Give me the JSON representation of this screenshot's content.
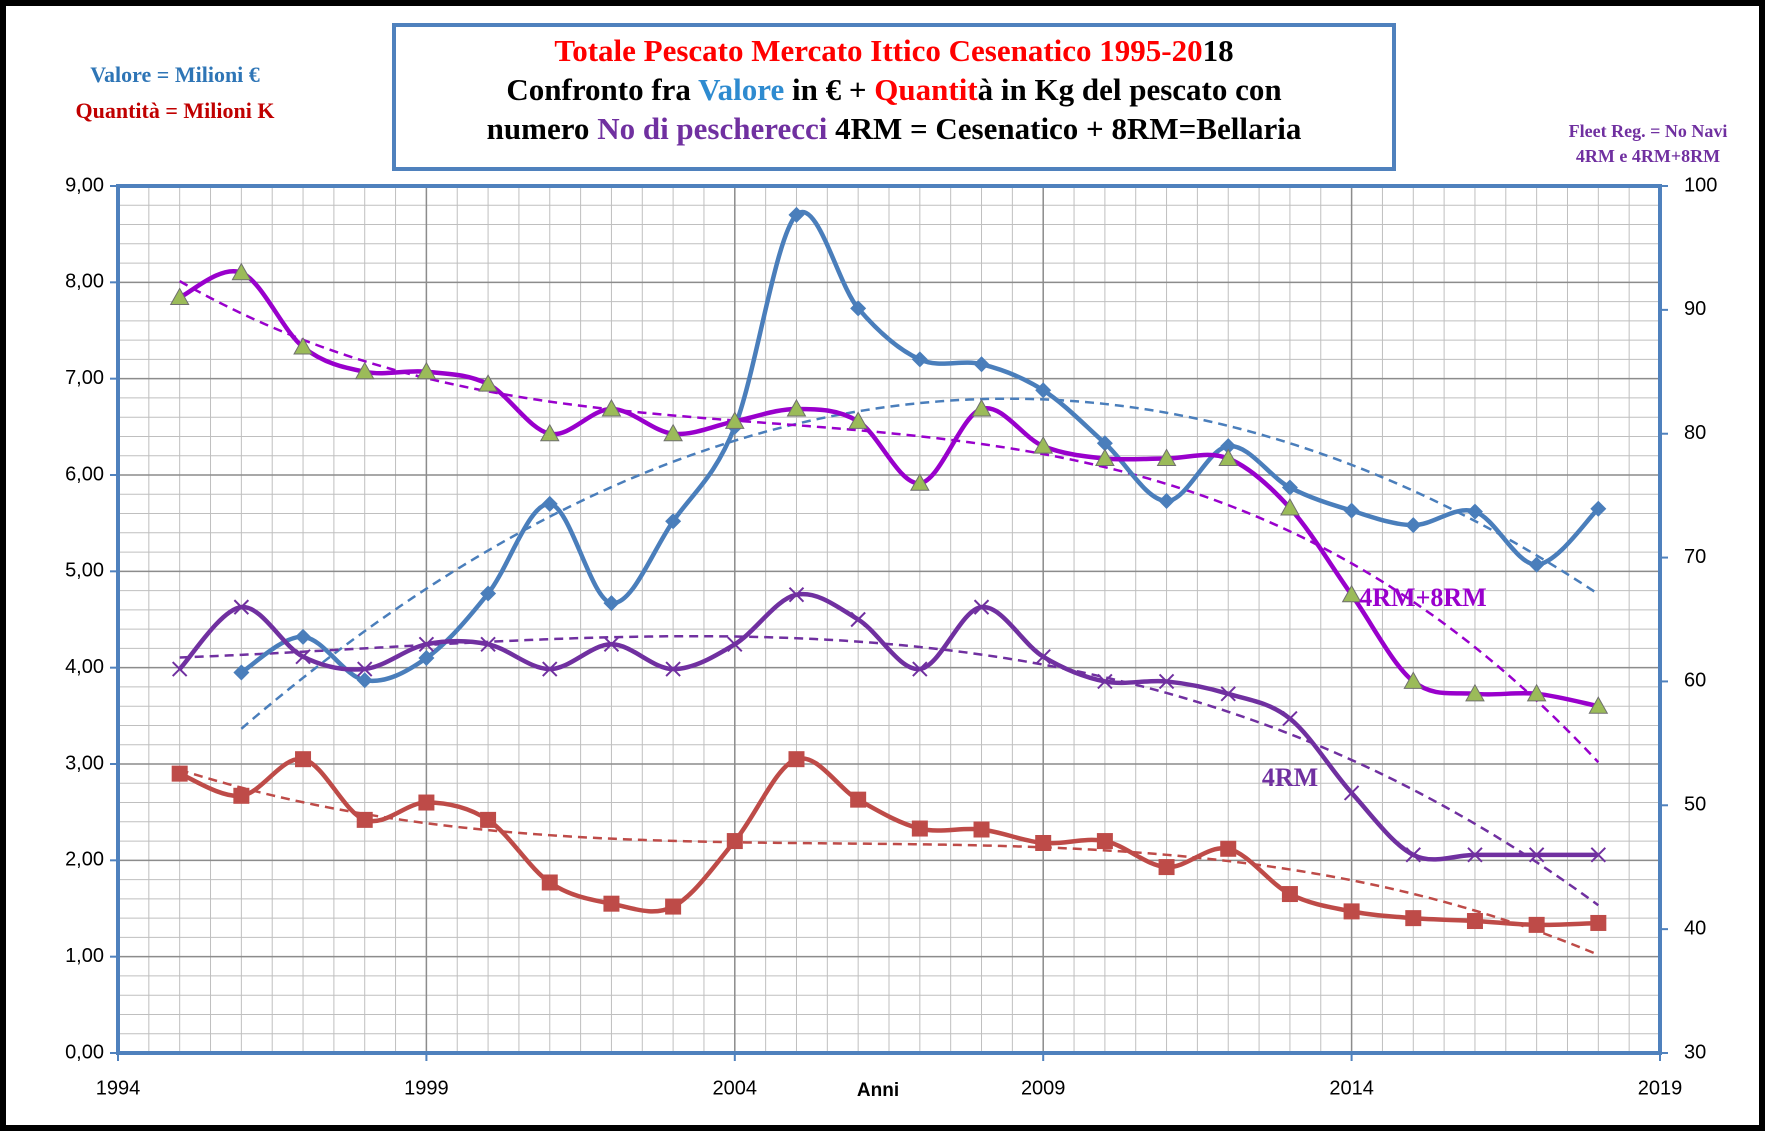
{
  "chart_data": {
    "type": "line",
    "title_lines": [
      [
        {
          "text": "Totale Pescato Mercato Ittico Cesenatico 1995-20",
          "color": "#ff0000"
        },
        {
          "text": "18",
          "color": "#000000"
        }
      ],
      [
        {
          "text": "Confronto fra ",
          "color": "#000000"
        },
        {
          "text": "Valore",
          "color": "#2e8bd0"
        },
        {
          "text": " in € + ",
          "color": "#000000"
        },
        {
          "text": "Quantit",
          "color": "#ff0000"
        },
        {
          "text": "à in Kg del pescato con",
          "color": "#000000"
        }
      ],
      [
        {
          "text": "numero ",
          "color": "#000000"
        },
        {
          "text": "No di pescherecci",
          "color": "#7030a0"
        },
        {
          "text": " 4RM = Cesenatico + 8RM=Bellaria",
          "color": "#000000"
        }
      ]
    ],
    "left_notes": [
      {
        "text": "Valore = Milioni €",
        "color": "#2e75b6"
      },
      {
        "text": "Quantità = Milioni K",
        "color": "#c00000"
      }
    ],
    "right_notes": [
      {
        "text": "Fleet Reg. = No Navi",
        "color": "#7030a0"
      },
      {
        "text": "4RM e 4RM+8RM",
        "color": "#7030a0"
      }
    ],
    "x_label": "Anni",
    "x": [
      1995,
      1996,
      1997,
      1998,
      1999,
      2000,
      2001,
      2002,
      2003,
      2004,
      2005,
      2006,
      2007,
      2008,
      2009,
      2010,
      2011,
      2012,
      2013,
      2014,
      2015,
      2016,
      2017,
      2018
    ],
    "xlim": [
      1994,
      2019
    ],
    "xticks": [
      1994,
      1999,
      2004,
      2009,
      2014,
      2019
    ],
    "ylim": [
      0,
      9
    ],
    "yticks": [
      {
        "value": 0,
        "label": "0,00"
      },
      {
        "value": 1,
        "label": "1,00"
      },
      {
        "value": 2,
        "label": "2,00"
      },
      {
        "value": 3,
        "label": "3,00"
      },
      {
        "value": 4,
        "label": "4,00"
      },
      {
        "value": 5,
        "label": "5,00"
      },
      {
        "value": 6,
        "label": "6,00"
      },
      {
        "value": 7,
        "label": "7,00"
      },
      {
        "value": 8,
        "label": "8,00"
      },
      {
        "value": 9,
        "label": "9,00"
      }
    ],
    "y2lim": [
      30,
      100
    ],
    "y2ticks": [
      30,
      40,
      50,
      60,
      70,
      80,
      90,
      100
    ],
    "grid": true,
    "x_minor_step": 0.5,
    "y_minor_step": 0.2,
    "series": [
      {
        "color": "#4a7ebb",
        "marker": "diamond",
        "trend_order": 2,
        "values": [
          null,
          3.95,
          4.32,
          3.87,
          4.1,
          4.77,
          5.7,
          4.67,
          5.52,
          6.5,
          8.7,
          7.73,
          7.2,
          7.15,
          6.88,
          6.33,
          5.73,
          6.3,
          5.87,
          5.63,
          5.48,
          5.62,
          5.07,
          5.65
        ]
      },
      {
        "color": "#be4b48",
        "marker": "square",
        "trend_order": 3,
        "values": [
          2.9,
          2.67,
          3.05,
          2.42,
          2.6,
          2.42,
          1.77,
          1.55,
          1.52,
          2.2,
          3.05,
          2.63,
          2.33,
          2.32,
          2.18,
          2.2,
          1.93,
          2.12,
          1.65,
          1.47,
          1.4,
          1.37,
          1.33,
          1.35
        ]
      },
      {
        "name": "4RM+8RM",
        "axis": "y2",
        "color": "#9900cc",
        "marker": "triangle",
        "marker_fill": "#9bbb59",
        "trend_order": 3,
        "values": [
          91,
          93,
          87,
          85,
          85,
          84,
          80,
          82,
          80,
          81,
          82,
          81,
          76,
          82,
          79,
          78,
          78,
          78,
          74,
          67,
          60,
          59,
          59,
          58
        ]
      },
      {
        "name": "4RM",
        "axis": "y2",
        "color": "#7030a0",
        "marker": "x",
        "trend_order": 3,
        "values": [
          61,
          66,
          62,
          61,
          63,
          63,
          61,
          63,
          61,
          63,
          67,
          65,
          61,
          66,
          62,
          60,
          60,
          59,
          57,
          51,
          46,
          46,
          46,
          46
        ]
      }
    ]
  }
}
